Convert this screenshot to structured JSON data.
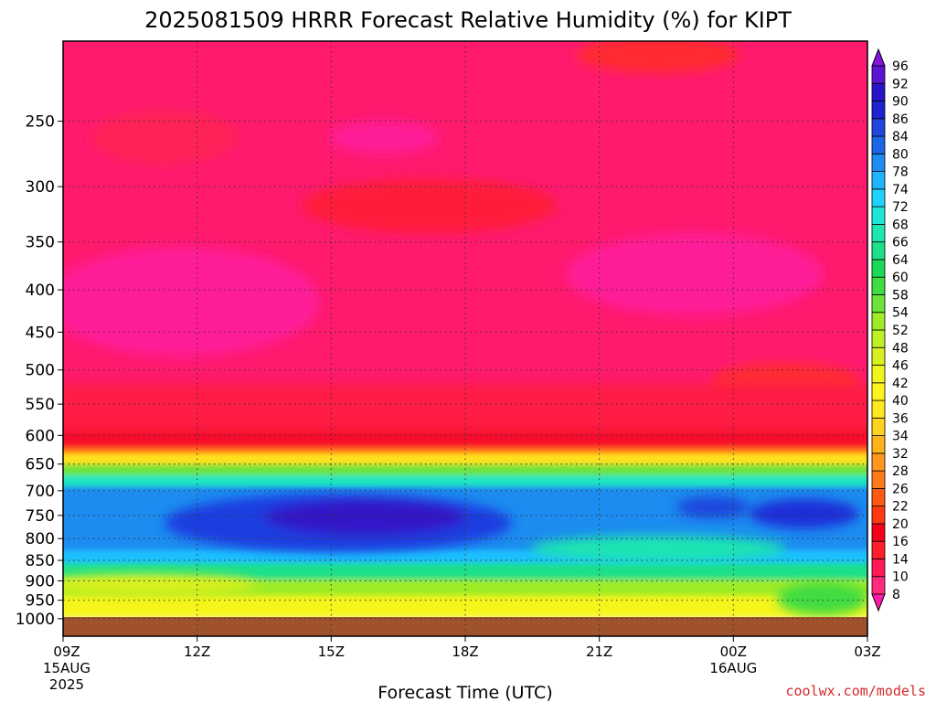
{
  "chart_data": {
    "type": "heatmap",
    "title": "2025081509 HRRR Forecast Relative Humidity (%) for KIPT",
    "xlabel": "Forecast Time (UTC)",
    "ylabel": "",
    "y_axis": {
      "levels_hpa": [
        250,
        300,
        350,
        400,
        450,
        500,
        550,
        600,
        650,
        700,
        750,
        800,
        850,
        900,
        950,
        1000
      ],
      "scale": "log-pressure",
      "range_hpa": [
        200,
        1050
      ]
    },
    "x_axis": {
      "ticks": [
        {
          "label": "09Z",
          "sub1": "15AUG",
          "sub2": "2025",
          "hours": 0
        },
        {
          "label": "12Z",
          "sub1": "",
          "sub2": "",
          "hours": 3
        },
        {
          "label": "15Z",
          "sub1": "",
          "sub2": "",
          "hours": 6
        },
        {
          "label": "18Z",
          "sub1": "",
          "sub2": "",
          "hours": 9
        },
        {
          "label": "21Z",
          "sub1": "",
          "sub2": "",
          "hours": 12
        },
        {
          "label": "00Z",
          "sub1": "16AUG",
          "sub2": "",
          "hours": 15
        },
        {
          "label": "03Z",
          "sub1": "",
          "sub2": "",
          "hours": 18
        }
      ],
      "range_hours": [
        0,
        18
      ]
    },
    "colorbar": {
      "levels": [
        8,
        10,
        14,
        16,
        20,
        22,
        26,
        28,
        32,
        34,
        36,
        40,
        42,
        46,
        48,
        52,
        54,
        58,
        60,
        64,
        66,
        68,
        72,
        74,
        78,
        80,
        84,
        86,
        90,
        92,
        96
      ],
      "colors": [
        "#ff1aa8",
        "#ff2a7e",
        "#ff1a55",
        "#ff1f2b",
        "#f5001a",
        "#ff3a12",
        "#ff5a14",
        "#ff7a1a",
        "#ff961e",
        "#ffb41e",
        "#ffd21e",
        "#ffe81e",
        "#fff31e",
        "#f0f51e",
        "#d8f01e",
        "#bff026",
        "#9eec28",
        "#6fe23a",
        "#3fdc42",
        "#1ed955",
        "#1ee08a",
        "#1ee6b0",
        "#1ee6d6",
        "#1ed2ff",
        "#1eb4ff",
        "#1e8cf0",
        "#1e64e6",
        "#1e46dc",
        "#1e23d2",
        "#2814c8",
        "#5a14d2",
        "#8214dc"
      ]
    },
    "series_description": "Relative humidity profile: upper levels (250-600 hPa) mostly 8-20%; moist band ~700-850 hPa with 80-96% maximum near 750 hPa between 13Z and 18Z; 60-72% near 850-900 hPa; 40-54% near 950-1000 hPa; surface below ~1000 hPa masked (brown)."
  },
  "footer": {
    "credit": "coolwx.com/models"
  }
}
